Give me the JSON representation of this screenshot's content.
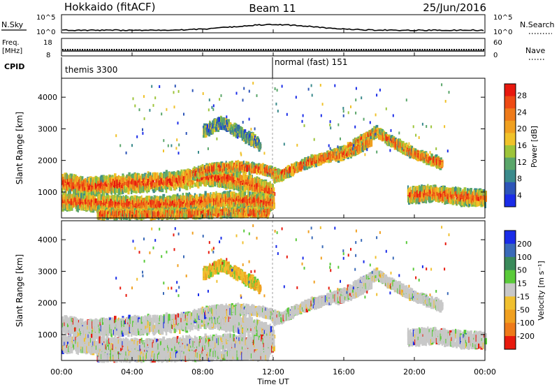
{
  "header": {
    "station": "Hokkaido (fitACF)",
    "beam": "Beam 11",
    "date": "25/Jun/2016"
  },
  "summary": {
    "nsky_label": "N.Sky",
    "nsearch_label": "N.Search",
    "n_ticks_left": [
      "10^5",
      "10^0"
    ],
    "n_ticks_right": [
      "10^5",
      "10^0"
    ],
    "freq_label_1": "Freq.",
    "freq_label_2": "[MHz]",
    "freq_ticks": [
      "18",
      "8"
    ],
    "nave_label": "Nave",
    "nave_ticks": [
      "60",
      "0"
    ],
    "cpid_label": "CPID",
    "cpid_modes": [
      {
        "name": "themis 3300"
      },
      {
        "name": "normal (fast) 151"
      }
    ]
  },
  "chart_data": [
    {
      "type": "heatmap",
      "xlabel": "Time UT",
      "ylabel": "Slant Range [km]",
      "xlim": [
        0,
        24
      ],
      "ylim": [
        180,
        4600
      ],
      "x_tick_labels": [
        "00:00",
        "04:00",
        "08:00",
        "12:00",
        "16:00",
        "20:00",
        "00:00"
      ],
      "y_tick_labels": [
        "1000",
        "2000",
        "3000",
        "4000"
      ],
      "colorbar": {
        "label": "Power [dB]",
        "tick_labels": [
          "4",
          "8",
          "12",
          "16",
          "20",
          "24",
          "28"
        ],
        "colors": [
          "#1a2ce8",
          "#2d55b8",
          "#3a8a8c",
          "#5aa66a",
          "#9dc43a",
          "#f0c22a",
          "#f0a020",
          "#ee7a1a",
          "#ee4a14",
          "#e8180e"
        ]
      },
      "echo_bands": [
        {
          "t": [
            0,
            1.5,
            3,
            5,
            6.5,
            8,
            9.5,
            11,
            12
          ],
          "r": [
            1300,
            1150,
            1250,
            1300,
            1350,
            1500,
            1400,
            1200,
            950
          ],
          "w": 500
        },
        {
          "t": [
            0,
            2,
            4,
            6,
            8,
            10,
            12
          ],
          "r": [
            700,
            650,
            600,
            620,
            700,
            750,
            650
          ],
          "w": 420
        },
        {
          "t": [
            2,
            4,
            6,
            7.5,
            9,
            10.5,
            11.7
          ],
          "r": [
            300,
            300,
            300,
            320,
            350,
            350,
            330
          ],
          "w": 180
        },
        {
          "t": [
            7,
            8.5,
            10,
            11.5,
            12.5
          ],
          "r": [
            1500,
            1750,
            1800,
            1700,
            1500
          ],
          "w": 220
        },
        {
          "t": [
            12,
            13,
            14,
            15,
            16,
            17,
            17.8,
            18.8,
            20,
            21.5
          ],
          "r": [
            1450,
            1700,
            1950,
            2100,
            2300,
            2650,
            2900,
            2550,
            2200,
            1900
          ],
          "w": 230
        },
        {
          "t": [
            15.5,
            16.5,
            17.5
          ],
          "r": [
            2100,
            2300,
            2600
          ],
          "w": 200
        },
        {
          "t": [
            19.6,
            21,
            22.5,
            24
          ],
          "r": [
            900,
            950,
            850,
            800
          ],
          "w": 420
        },
        {
          "t": [
            8,
            9,
            10,
            11.2
          ],
          "r": [
            2900,
            3200,
            2900,
            2500
          ],
          "w": 280
        }
      ],
      "velocity_colorbar": {
        "label": "Velocity [m s⁻¹]",
        "tick_labels": [
          "200",
          "100",
          "50",
          "15",
          "-15",
          "-50",
          "-100",
          "-200"
        ],
        "colors": [
          "#1a2ce8",
          "#3a6ab8",
          "#3a8a5a",
          "#5aca3a",
          "#c8c8c8",
          "#f0c030",
          "#f0a020",
          "#ee7a1a",
          "#e81a0e"
        ]
      }
    },
    {
      "type": "heatmap",
      "xlabel": "Time UT",
      "ylabel": "Slant Range [km]",
      "xlim": [
        0,
        24
      ],
      "ylim": [
        180,
        4600
      ],
      "x_tick_labels": [
        "00:00",
        "04:00",
        "08:00",
        "12:00",
        "16:00",
        "20:00",
        "00:00"
      ],
      "y_tick_labels": [
        "1000",
        "2000",
        "3000",
        "4000"
      ]
    }
  ]
}
